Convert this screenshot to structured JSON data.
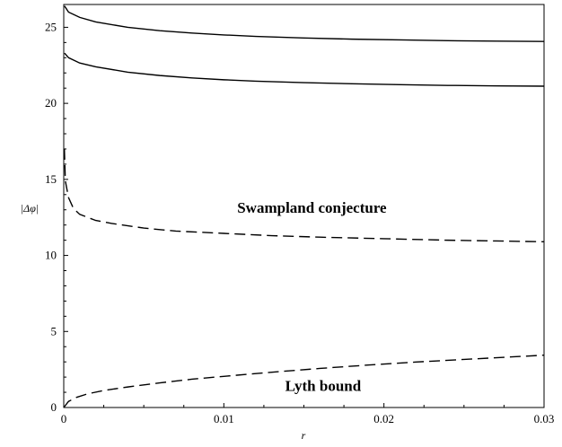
{
  "chart_data": {
    "type": "line",
    "title": "",
    "xlabel": "r",
    "ylabel": "|Δφ|",
    "xlim": [
      0,
      0.03
    ],
    "ylim": [
      0,
      26.5
    ],
    "x_ticks": [
      "0",
      "0.01",
      "0.02",
      "0.03"
    ],
    "y_ticks": [
      "0",
      "5",
      "10",
      "15",
      "20",
      "25"
    ],
    "grid": false,
    "legend": "none",
    "annotations": [
      {
        "text": "Swampland conjecture",
        "x": 0.0155,
        "y": 12.8
      },
      {
        "text": "Lyth bound",
        "x": 0.0162,
        "y": 1.1
      }
    ],
    "series": [
      {
        "style": "solid",
        "x": [
          5e-05,
          0.0003,
          0.001,
          0.002,
          0.004,
          0.006,
          0.008,
          0.01,
          0.012,
          0.015,
          0.018,
          0.021,
          0.024,
          0.027,
          0.03
        ],
        "y": [
          26.4,
          26.0,
          25.65,
          25.35,
          25.0,
          24.78,
          24.62,
          24.5,
          24.4,
          24.3,
          24.22,
          24.17,
          24.12,
          24.09,
          24.07
        ]
      },
      {
        "style": "solid",
        "x": [
          5e-05,
          0.0003,
          0.001,
          0.002,
          0.004,
          0.006,
          0.008,
          0.01,
          0.012,
          0.015,
          0.018,
          0.021,
          0.024,
          0.027,
          0.03
        ],
        "y": [
          23.3,
          23.0,
          22.65,
          22.4,
          22.05,
          21.83,
          21.67,
          21.55,
          21.46,
          21.36,
          21.29,
          21.23,
          21.18,
          21.15,
          21.13
        ]
      },
      {
        "style": "dashed",
        "x": [
          4e-05,
          0.0001,
          0.0003,
          0.0006,
          0.001,
          0.002,
          0.003,
          0.005,
          0.007,
          0.01,
          0.013,
          0.016,
          0.02,
          0.024,
          0.027,
          0.03
        ],
        "y": [
          17.0,
          14.9,
          13.8,
          13.1,
          12.7,
          12.3,
          12.1,
          11.8,
          11.6,
          11.45,
          11.3,
          11.2,
          11.1,
          11.0,
          10.95,
          10.9
        ]
      },
      {
        "style": "dashed",
        "x": [
          0.0,
          0.0003,
          0.0008,
          0.0015,
          0.0025,
          0.004,
          0.006,
          0.008,
          0.01,
          0.013,
          0.016,
          0.019,
          0.022,
          0.025,
          0.028,
          0.03
        ],
        "y": [
          0.0,
          0.4,
          0.67,
          0.9,
          1.12,
          1.35,
          1.62,
          1.86,
          2.05,
          2.32,
          2.57,
          2.79,
          2.99,
          3.16,
          3.33,
          3.44
        ]
      }
    ]
  }
}
